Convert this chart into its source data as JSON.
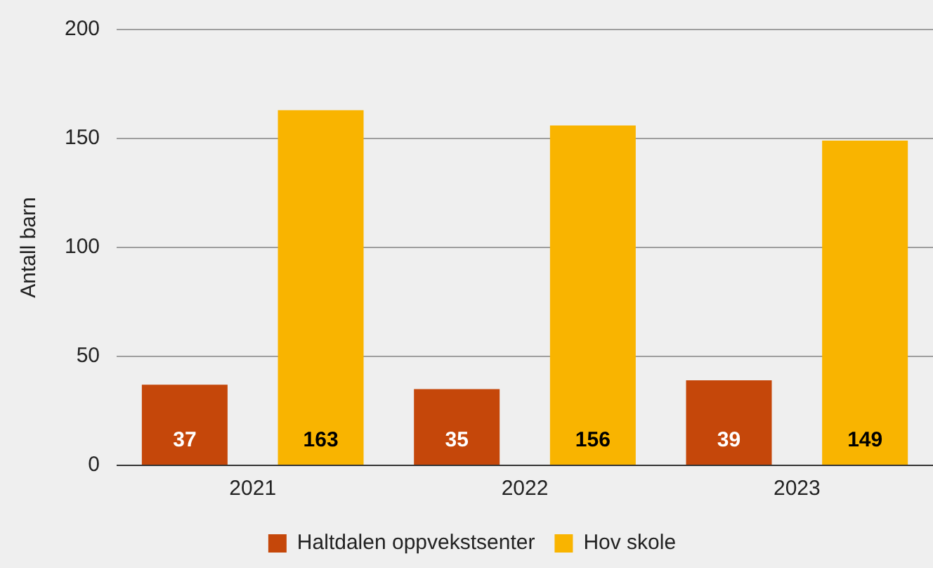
{
  "chart_data": {
    "type": "bar",
    "ylabel": "Antall barn",
    "categories": [
      "2021",
      "2022",
      "2023"
    ],
    "series": [
      {
        "name": "Haltdalen oppvekstsenter",
        "color": "#c5470a",
        "values": [
          37,
          35,
          39
        ]
      },
      {
        "name": "Hov skole",
        "color": "#f9b400",
        "values": [
          163,
          156,
          149
        ]
      }
    ],
    "ylim": [
      0,
      200
    ],
    "yticks": [
      0,
      50,
      100,
      150,
      200
    ],
    "grid": "y",
    "legend": "bottom",
    "data_labels": true
  }
}
